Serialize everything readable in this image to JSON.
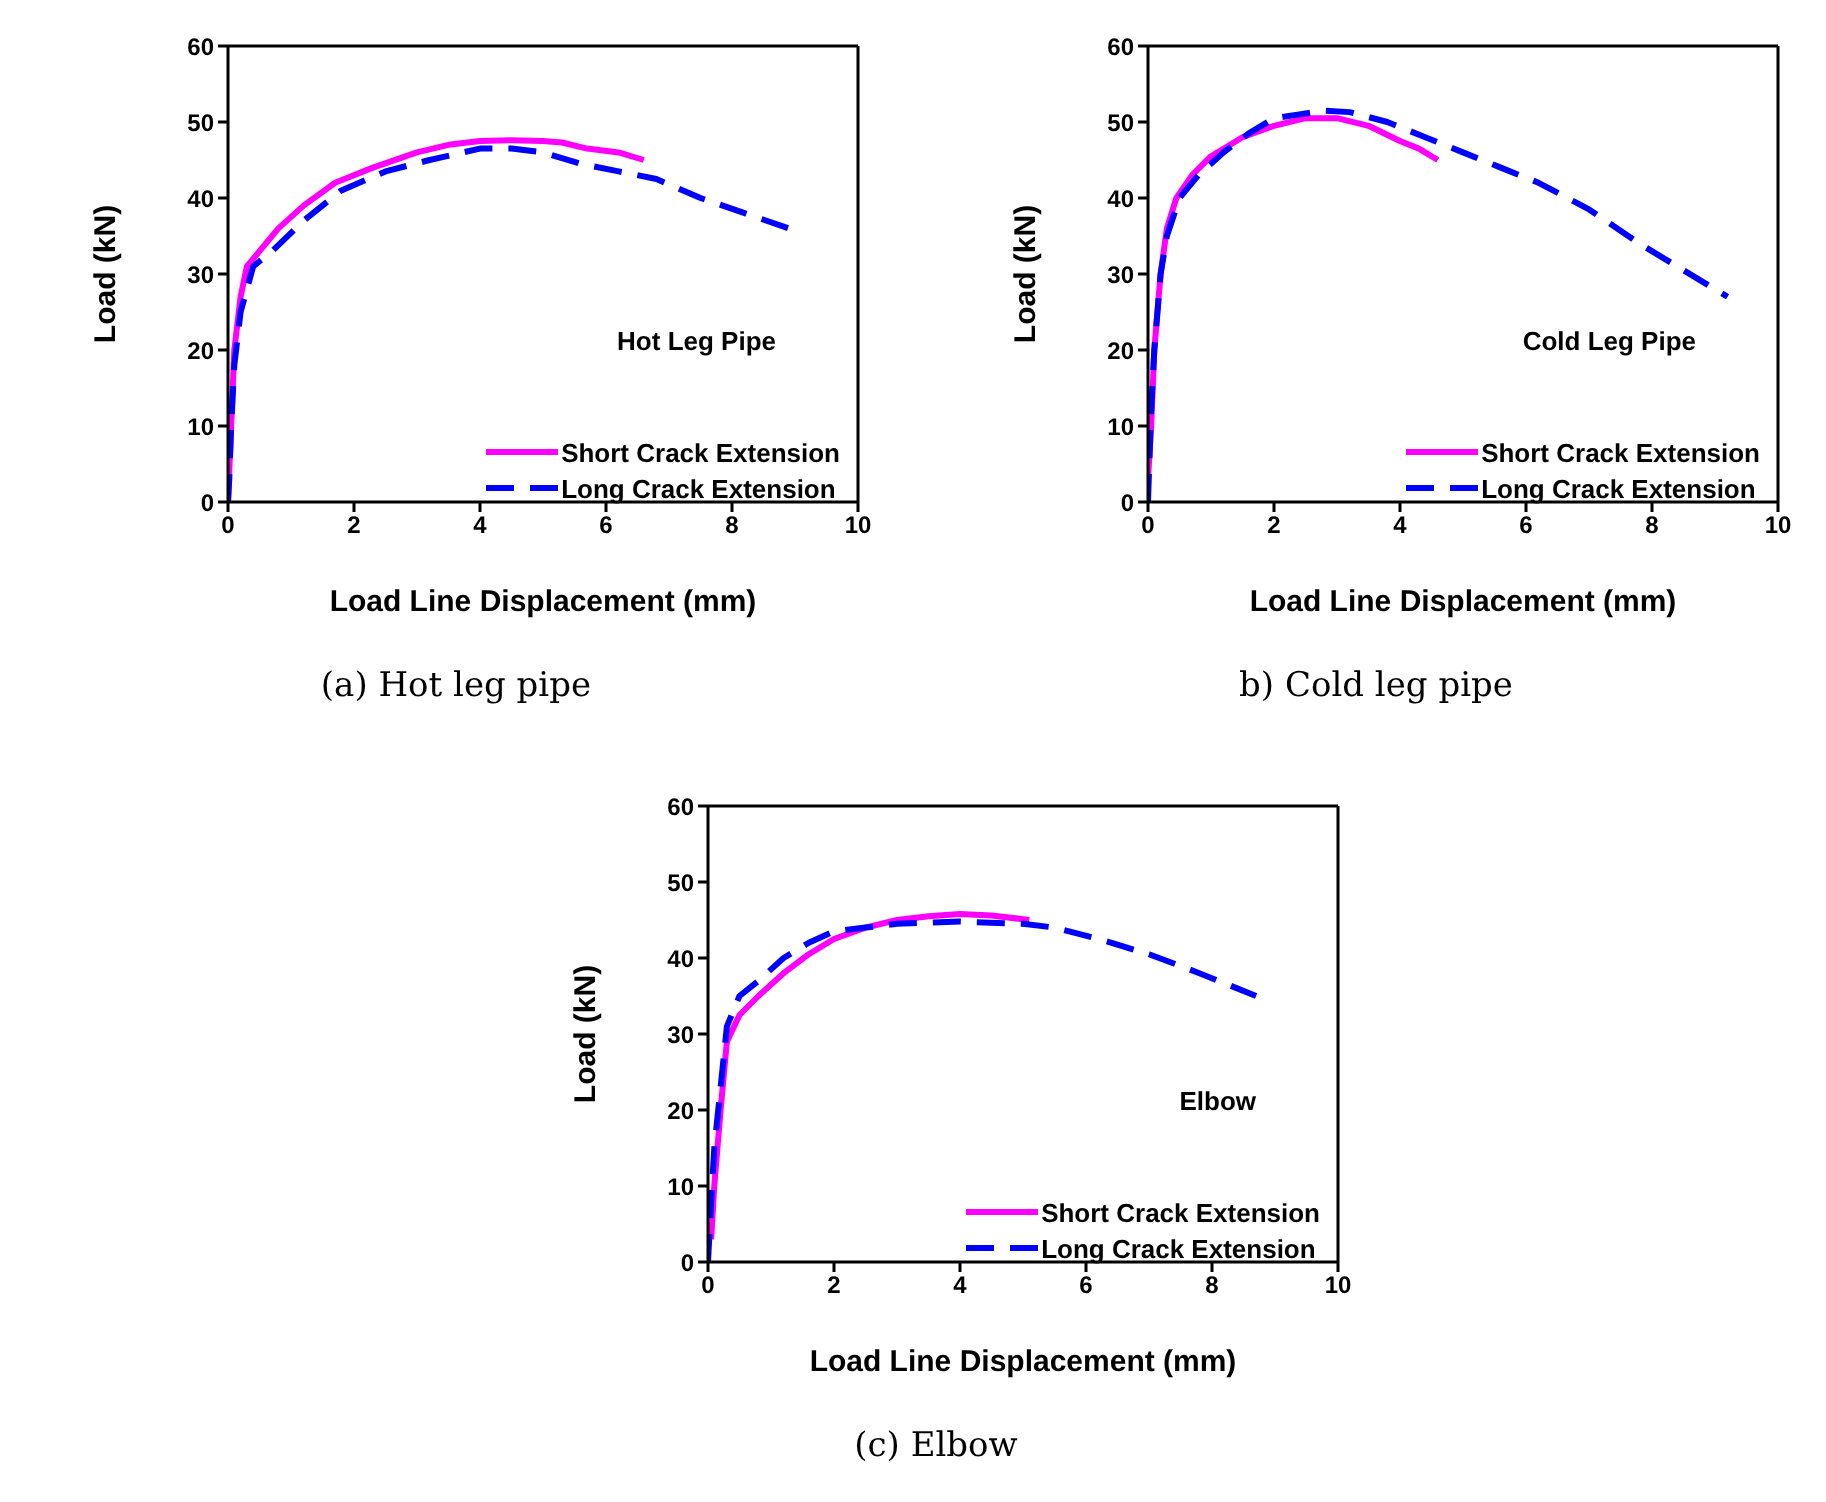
{
  "chart_data": [
    {
      "type": "line",
      "xlabel": "Load Line Displacement (mm)",
      "ylabel": "Load (kN)",
      "annotations": [
        "Hot Leg Pipe",
        "(a) Hot leg pipe"
      ],
      "xlim": [
        0,
        10
      ],
      "xticks": [
        0,
        2,
        4,
        6,
        8,
        10
      ],
      "ylim": [
        0,
        60
      ],
      "yticks": [
        0,
        10,
        20,
        30,
        40,
        50,
        60
      ],
      "legend": "bottom right",
      "marker": "none",
      "series": [
        {
          "name": "Short Crack Extension",
          "color": "#ff00ff",
          "line_style": "solid",
          "x": [
            0,
            0.05,
            0.1,
            0.2,
            0.3,
            0.5,
            0.8,
            1.2,
            1.7,
            2.3,
            3,
            3.5,
            4,
            4.5,
            5,
            5.3,
            5.7,
            6.2,
            6.6
          ],
          "values": [
            0,
            10,
            20,
            27,
            31,
            33,
            36,
            39,
            42,
            44,
            46,
            47,
            47.5,
            47.6,
            47.5,
            47.3,
            46.5,
            46,
            45
          ]
        },
        {
          "name": "Long Crack Extension",
          "color": "#0000ff",
          "line_style": "dashed",
          "x": [
            0,
            0.02,
            0.05,
            0.1,
            0.2,
            0.4,
            0.7,
            1.2,
            1.8,
            2.5,
            3.2,
            4,
            4.5,
            5,
            5.6,
            6.2,
            6.8,
            7.5,
            8.2,
            8.9
          ],
          "values": [
            0,
            3,
            10,
            18,
            25,
            31,
            33,
            37,
            41,
            43.5,
            45,
            46.5,
            46.5,
            46,
            44.5,
            43.5,
            42.5,
            40,
            38,
            36
          ]
        }
      ]
    },
    {
      "type": "line",
      "xlabel": "Load Line Displacement (mm)",
      "ylabel": "Load (kN)",
      "annotations": [
        "Cold Leg Pipe",
        "b) Cold leg pipe"
      ],
      "xlim": [
        0,
        10
      ],
      "xticks": [
        0,
        2,
        4,
        6,
        8,
        10
      ],
      "ylim": [
        0,
        60
      ],
      "yticks": [
        0,
        10,
        20,
        30,
        40,
        50,
        60
      ],
      "legend": "bottom right",
      "marker": "none",
      "series": [
        {
          "name": "Short Crack Extension",
          "color": "#ff00ff",
          "line_style": "solid",
          "x": [
            0,
            0.05,
            0.1,
            0.2,
            0.3,
            0.45,
            0.7,
            1,
            1.5,
            2,
            2.5,
            3,
            3.5,
            4,
            4.3,
            4.6
          ],
          "values": [
            3,
            10,
            20,
            30,
            36,
            40,
            43,
            45.5,
            48,
            49.5,
            50.5,
            50.5,
            49.5,
            47.5,
            46.5,
            45
          ]
        },
        {
          "name": "Long Crack Extension",
          "color": "#0000ff",
          "line_style": "dashed",
          "x": [
            0,
            0.02,
            0.05,
            0.1,
            0.2,
            0.3,
            0.5,
            0.8,
            1.2,
            1.6,
            2,
            2.4,
            2.8,
            3.2,
            3.8,
            4.4,
            5,
            5.6,
            6.2,
            7,
            7.8,
            8.4,
            9.2
          ],
          "values": [
            0,
            5,
            12,
            20,
            30,
            35,
            40,
            43,
            46,
            48.5,
            50.5,
            51,
            51.5,
            51.3,
            50,
            48,
            46,
            44,
            42,
            38.5,
            34,
            31,
            27
          ]
        }
      ]
    },
    {
      "type": "line",
      "xlabel": "Load Line Displacement (mm)",
      "ylabel": "Load (kN)",
      "annotations": [
        "Elbow",
        "(c) Elbow"
      ],
      "xlim": [
        0,
        10
      ],
      "xticks": [
        0,
        2,
        4,
        6,
        8,
        10
      ],
      "ylim": [
        0,
        60
      ],
      "yticks": [
        0,
        10,
        20,
        30,
        40,
        50,
        60
      ],
      "legend": "bottom right",
      "marker": "none",
      "series": [
        {
          "name": "Short Crack Extension",
          "color": "#ff00ff",
          "line_style": "solid",
          "x": [
            0.05,
            0.1,
            0.2,
            0.3,
            0.5,
            0.8,
            1.2,
            1.6,
            2,
            2.5,
            3,
            3.5,
            4,
            4.5,
            5.1
          ],
          "values": [
            3,
            10,
            20,
            29,
            32.5,
            35,
            38,
            40.5,
            42.5,
            44,
            45,
            45.5,
            45.8,
            45.6,
            45
          ]
        },
        {
          "name": "Long Crack Extension",
          "color": "#0000ff",
          "line_style": "dashed",
          "x": [
            0,
            0.05,
            0.1,
            0.2,
            0.3,
            0.5,
            0.8,
            1.2,
            1.6,
            2,
            2.5,
            3,
            4,
            5,
            5.5,
            6.2,
            7,
            7.8,
            8.7
          ],
          "values": [
            0,
            8,
            15,
            23,
            31,
            35,
            37,
            40,
            42,
            43.5,
            44,
            44.5,
            44.8,
            44.5,
            44,
            42.5,
            40.5,
            38,
            35
          ]
        }
      ]
    }
  ]
}
